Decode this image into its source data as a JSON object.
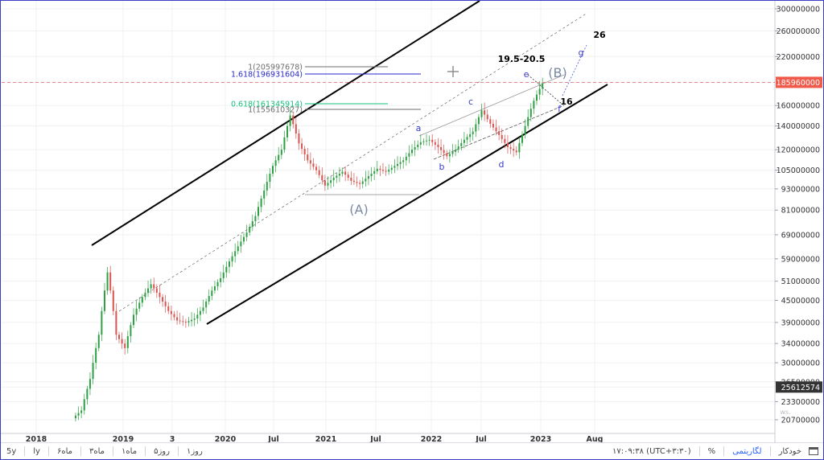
{
  "colors": {
    "background": "#ffffff",
    "price_scale_bg": "#ffffff",
    "current_price_bg": "#f05a4a",
    "last_price_bg": "#333333",
    "wave_label": "#3a3acc",
    "wave_big_label": "#7a8aa0",
    "fib_1": "#6e6e6e",
    "fib_1618": "#2a2acc",
    "fib_0618": "#16c27e",
    "channel": "#000000",
    "candle_up": "#2ea043",
    "candle_down": "#d9534f",
    "crosshair": "#e06666"
  },
  "chart_data": {
    "type": "candlestick",
    "title": "",
    "scale": "log",
    "y_ticks": [
      300000000,
      260000000,
      220000000,
      185960000,
      160000000,
      140000000,
      120000000,
      105000000,
      93000000,
      81000000,
      69000000,
      59000000,
      51000000,
      45000000,
      39000000,
      34000000,
      30000000,
      26500000,
      25612574,
      23300000,
      20700000
    ],
    "y_tick_labels": [
      "300000000",
      "260000000",
      "220000000",
      "185960000",
      "160000000",
      "140000000",
      "120000000",
      "105000000",
      "93000000",
      "81000000",
      "69000000",
      "59000000",
      "51000000",
      "45000000",
      "39000000",
      "34000000",
      "30000000",
      "26500000",
      "25612574",
      "23300000",
      "20700000"
    ],
    "current_price_label": "185960000",
    "last_price_label": "25612574",
    "x_ticks": [
      "2018",
      "2019",
      "3",
      "2020",
      "Jul",
      "2021",
      "Jul",
      "2022",
      "Jul",
      "2023",
      "Aug"
    ],
    "grid": true,
    "price_series_approx": [
      {
        "date": "2018-08",
        "close": 22000000
      },
      {
        "date": "2018-09",
        "close": 27000000
      },
      {
        "date": "2018-10",
        "close": 36000000
      },
      {
        "date": "2018-11",
        "close": 54000000
      },
      {
        "date": "2018-12",
        "close": 36000000
      },
      {
        "date": "2019-01",
        "close": 33000000
      },
      {
        "date": "2019-02",
        "close": 41000000
      },
      {
        "date": "2019-03",
        "close": 46000000
      },
      {
        "date": "2019-04",
        "close": 50000000
      },
      {
        "date": "2019-05",
        "close": 46000000
      },
      {
        "date": "2019-06",
        "close": 42000000
      },
      {
        "date": "2019-07",
        "close": 39500000
      },
      {
        "date": "2019-08",
        "close": 39000000
      },
      {
        "date": "2019-09",
        "close": 40000000
      },
      {
        "date": "2019-10",
        "close": 43000000
      },
      {
        "date": "2019-11",
        "close": 48000000
      },
      {
        "date": "2019-12",
        "close": 52000000
      },
      {
        "date": "2020-01",
        "close": 58000000
      },
      {
        "date": "2020-02",
        "close": 64000000
      },
      {
        "date": "2020-03",
        "close": 70000000
      },
      {
        "date": "2020-04",
        "close": 78000000
      },
      {
        "date": "2020-05",
        "close": 92000000
      },
      {
        "date": "2020-06",
        "close": 108000000
      },
      {
        "date": "2020-07",
        "close": 120000000
      },
      {
        "date": "2020-08",
        "close": 150000000
      },
      {
        "date": "2020-09",
        "close": 125000000
      },
      {
        "date": "2020-10",
        "close": 112000000
      },
      {
        "date": "2020-11",
        "close": 105000000
      },
      {
        "date": "2020-12",
        "close": 95000000
      },
      {
        "date": "2021-01",
        "close": 100000000
      },
      {
        "date": "2021-02",
        "close": 104000000
      },
      {
        "date": "2021-03",
        "close": 98000000
      },
      {
        "date": "2021-04",
        "close": 96000000
      },
      {
        "date": "2021-05",
        "close": 101000000
      },
      {
        "date": "2021-06",
        "close": 106000000
      },
      {
        "date": "2021-07",
        "close": 104000000
      },
      {
        "date": "2021-08",
        "close": 108000000
      },
      {
        "date": "2021-09",
        "close": 112000000
      },
      {
        "date": "2021-10",
        "close": 120000000
      },
      {
        "date": "2021-11",
        "close": 126000000
      },
      {
        "date": "2021-12",
        "close": 128000000
      },
      {
        "date": "2022-01",
        "close": 122000000
      },
      {
        "date": "2022-02",
        "close": 115000000
      },
      {
        "date": "2022-03",
        "close": 120000000
      },
      {
        "date": "2022-04",
        "close": 128000000
      },
      {
        "date": "2022-05",
        "close": 135000000
      },
      {
        "date": "2022-06",
        "close": 155000000
      },
      {
        "date": "2022-07",
        "close": 142000000
      },
      {
        "date": "2022-08",
        "close": 132000000
      },
      {
        "date": "2022-09",
        "close": 122000000
      },
      {
        "date": "2022-10",
        "close": 118000000
      },
      {
        "date": "2022-11",
        "close": 140000000
      },
      {
        "date": "2022-12",
        "close": 165000000
      },
      {
        "date": "2023-01",
        "close": 185000000
      }
    ],
    "annotations": {
      "channel_label_A": "(A)",
      "channel_label_B": "(B)",
      "wave_labels": [
        "a",
        "b",
        "c",
        "d",
        "e",
        "f",
        "g"
      ],
      "target_labels": [
        "19.5-20.5",
        "26",
        "16"
      ],
      "fib_levels": [
        {
          "label": "1(205997678)",
          "value": 205997678
        },
        {
          "label": "1.618(196931604)",
          "value": 196931604
        },
        {
          "label": "0.618(161345914)",
          "value": 161345914
        },
        {
          "label": "1(155610327)",
          "value": 155610327
        }
      ],
      "watermark": "ws."
    }
  },
  "bottom_bar": {
    "ranges": [
      "5y",
      "ly",
      "۶ماه",
      "۳ماه",
      "ماه۱",
      "روز۵",
      "روز۱"
    ],
    "timestamp": "۱۷:۰۹:۳۸ (UTC+۳:۳۰)",
    "percent": "%",
    "log": "لگاریتمی",
    "auto": "خودکار",
    "calendar_icon": "calendar-icon"
  }
}
